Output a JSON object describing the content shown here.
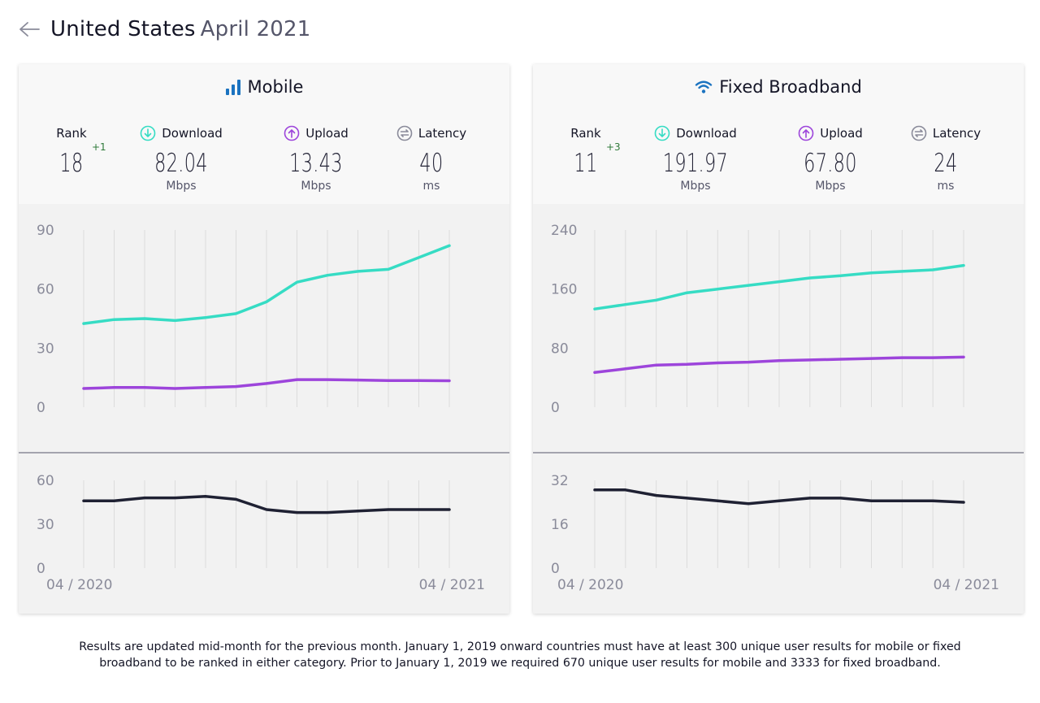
{
  "header": {
    "country": "United States",
    "period": "April 2021"
  },
  "colors": {
    "download": "#36dcc4",
    "upload": "#9d45db",
    "latency": "#1f2133",
    "axis_text": "#8a8b9a",
    "grid": "#dcdcdc"
  },
  "cards": [
    {
      "id": "mobile",
      "title": "Mobile",
      "icon": "signal-bars-icon",
      "rank": {
        "label": "Rank",
        "value": "18",
        "change": "+1"
      },
      "download": {
        "label": "Download",
        "value": "82.04",
        "unit": "Mbps"
      },
      "upload": {
        "label": "Upload",
        "value": "13.43",
        "unit": "Mbps"
      },
      "latency": {
        "label": "Latency",
        "value": "40",
        "unit": "ms"
      },
      "x_start": "04 / 2020",
      "x_end": "04 / 2021"
    },
    {
      "id": "fixed",
      "title": "Fixed Broadband",
      "icon": "wifi-icon",
      "rank": {
        "label": "Rank",
        "value": "11",
        "change": "+3"
      },
      "download": {
        "label": "Download",
        "value": "191.97",
        "unit": "Mbps"
      },
      "upload": {
        "label": "Upload",
        "value": "67.80",
        "unit": "Mbps"
      },
      "latency": {
        "label": "Latency",
        "value": "24",
        "unit": "ms"
      },
      "x_start": "04 / 2020",
      "x_end": "04 / 2021"
    }
  ],
  "chart_data": [
    {
      "type": "line",
      "x": [
        "04/2020",
        "05/2020",
        "06/2020",
        "07/2020",
        "08/2020",
        "09/2020",
        "10/2020",
        "11/2020",
        "12/2020",
        "01/2021",
        "02/2021",
        "03/2021",
        "04/2021"
      ],
      "ylim": [
        0,
        90
      ],
      "yticks": [
        "90",
        "60",
        "30",
        "0"
      ],
      "series": [
        {
          "values": [
            42.5,
            44.5,
            45,
            44,
            45.5,
            47.5,
            53.5,
            63.5,
            67,
            69,
            70,
            76,
            82.04
          ]
        },
        {
          "values": [
            9.5,
            10,
            10,
            9.5,
            10,
            10.5,
            12,
            14,
            14,
            13.8,
            13.5,
            13.5,
            13.43
          ]
        }
      ]
    },
    {
      "type": "line",
      "x": [
        "04/2020",
        "05/2020",
        "06/2020",
        "07/2020",
        "08/2020",
        "09/2020",
        "10/2020",
        "11/2020",
        "12/2020",
        "01/2021",
        "02/2021",
        "03/2021",
        "04/2021"
      ],
      "ylim": [
        0,
        60
      ],
      "yticks": [
        "60",
        "30",
        "0"
      ],
      "series": [
        {
          "values": [
            46,
            46,
            48,
            48,
            49,
            47,
            40,
            38,
            38,
            39,
            40,
            40,
            40
          ]
        }
      ]
    },
    {
      "type": "line",
      "x": [
        "04/2020",
        "05/2020",
        "06/2020",
        "07/2020",
        "08/2020",
        "09/2020",
        "10/2020",
        "11/2020",
        "12/2020",
        "01/2021",
        "02/2021",
        "03/2021",
        "04/2021"
      ],
      "ylim": [
        0,
        240
      ],
      "yticks": [
        "240",
        "160",
        "80",
        "0"
      ],
      "series": [
        {
          "values": [
            133,
            139,
            145,
            155,
            160,
            165,
            170,
            175,
            178,
            182,
            184,
            186,
            191.97
          ]
        },
        {
          "values": [
            47,
            52,
            57,
            58,
            60,
            61,
            63,
            64,
            65,
            66,
            67,
            67,
            67.8
          ]
        }
      ]
    },
    {
      "type": "line",
      "x": [
        "04/2020",
        "05/2020",
        "06/2020",
        "07/2020",
        "08/2020",
        "09/2020",
        "10/2020",
        "11/2020",
        "12/2020",
        "01/2021",
        "02/2021",
        "03/2021",
        "04/2021"
      ],
      "ylim": [
        0,
        32
      ],
      "yticks": [
        "32",
        "16",
        "0"
      ],
      "series": [
        {
          "values": [
            28.5,
            28.5,
            26.5,
            25.5,
            24.5,
            23.5,
            24.5,
            25.5,
            25.5,
            24.5,
            24.5,
            24.5,
            24
          ]
        }
      ]
    }
  ],
  "footer": {
    "line1": "Results are updated mid-month for the previous month. January 1, 2019 onward countries must have at least 300 unique user results for mobile or fixed",
    "line2": "broadband to be ranked in either category. Prior to January 1, 2019 we required 670 unique user results for mobile and 3333 for fixed broadband."
  }
}
